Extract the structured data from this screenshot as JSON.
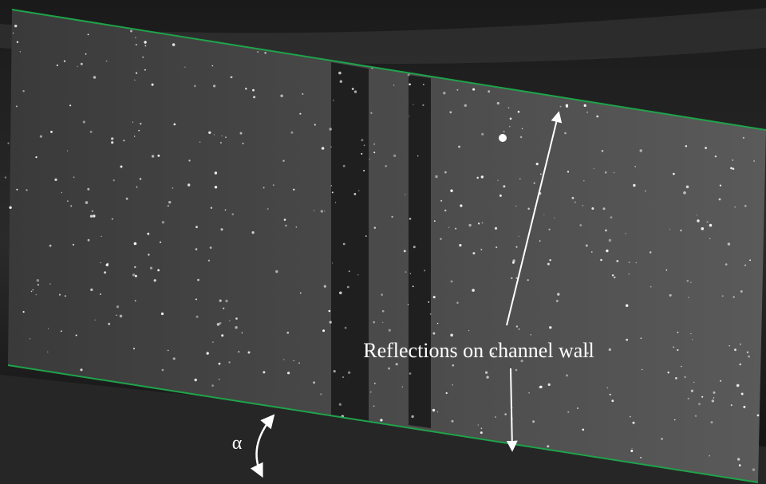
{
  "annotations": {
    "label": "Reflections on channel wall",
    "angle": "α"
  }
}
